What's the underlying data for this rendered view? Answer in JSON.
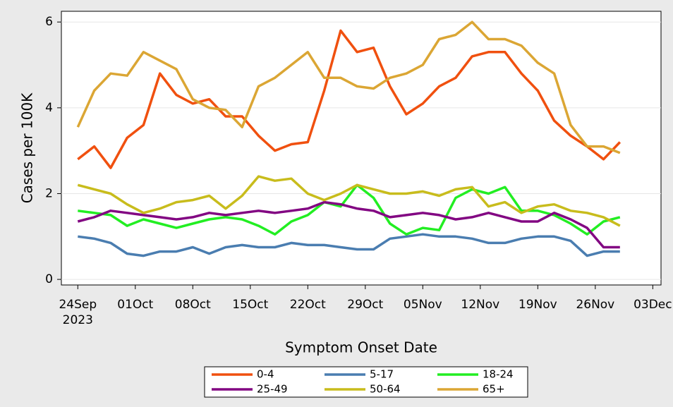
{
  "chart_data": {
    "type": "line",
    "x_label": "Symptom Onset Date",
    "y_label": "Cases per 100K",
    "x": [
      "2023-09-24",
      "2023-09-26",
      "2023-09-28",
      "2023-09-30",
      "2023-10-02",
      "2023-10-04",
      "2023-10-06",
      "2023-10-08",
      "2023-10-10",
      "2023-10-12",
      "2023-10-14",
      "2023-10-16",
      "2023-10-18",
      "2023-10-20",
      "2023-10-22",
      "2023-10-24",
      "2023-10-26",
      "2023-10-28",
      "2023-10-30",
      "2023-11-01",
      "2023-11-03",
      "2023-11-05",
      "2023-11-07",
      "2023-11-09",
      "2023-11-11",
      "2023-11-13",
      "2023-11-15",
      "2023-11-17",
      "2023-11-19",
      "2023-11-21",
      "2023-11-23",
      "2023-11-25",
      "2023-11-27",
      "2023-11-29"
    ],
    "series": [
      {
        "name": "0-4",
        "color": "#f0500f",
        "values": [
          2.8,
          3.1,
          2.6,
          3.3,
          3.6,
          4.8,
          4.3,
          4.1,
          4.2,
          3.8,
          3.8,
          3.35,
          3.0,
          3.15,
          3.2,
          4.4,
          5.8,
          5.3,
          5.4,
          4.5,
          3.85,
          4.1,
          4.5,
          4.7,
          5.2,
          5.3,
          5.3,
          4.8,
          4.4,
          3.7,
          3.35,
          3.1,
          2.8,
          3.2
        ]
      },
      {
        "name": "5-17",
        "color": "#4a7db0",
        "values": [
          1.0,
          0.95,
          0.85,
          0.6,
          0.55,
          0.65,
          0.65,
          0.75,
          0.6,
          0.75,
          0.8,
          0.75,
          0.75,
          0.85,
          0.8,
          0.8,
          0.75,
          0.7,
          0.7,
          0.95,
          1.0,
          1.05,
          1.0,
          1.0,
          0.95,
          0.85,
          0.85,
          0.95,
          1.0,
          1.0,
          0.9,
          0.55,
          0.65,
          0.65
        ]
      },
      {
        "name": "18-24",
        "color": "#22ee22",
        "values": [
          1.6,
          1.55,
          1.5,
          1.25,
          1.4,
          1.3,
          1.2,
          1.3,
          1.4,
          1.45,
          1.4,
          1.25,
          1.05,
          1.35,
          1.5,
          1.8,
          1.7,
          2.2,
          1.9,
          1.3,
          1.05,
          1.2,
          1.15,
          1.9,
          2.1,
          2.0,
          2.15,
          1.6,
          1.6,
          1.5,
          1.3,
          1.05,
          1.35,
          1.45
        ]
      },
      {
        "name": "25-49",
        "color": "#820682",
        "values": [
          1.35,
          1.45,
          1.6,
          1.55,
          1.5,
          1.45,
          1.4,
          1.45,
          1.55,
          1.5,
          1.55,
          1.6,
          1.55,
          1.6,
          1.65,
          1.8,
          1.75,
          1.65,
          1.6,
          1.45,
          1.5,
          1.55,
          1.5,
          1.4,
          1.45,
          1.55,
          1.45,
          1.35,
          1.35,
          1.55,
          1.4,
          1.2,
          0.75,
          0.75
        ]
      },
      {
        "name": "50-64",
        "color": "#c8bc1c",
        "values": [
          2.2,
          2.1,
          2.0,
          1.75,
          1.55,
          1.65,
          1.8,
          1.85,
          1.95,
          1.65,
          1.95,
          2.4,
          2.3,
          2.35,
          2.0,
          1.85,
          2.0,
          2.2,
          2.1,
          2.0,
          2.0,
          2.05,
          1.95,
          2.1,
          2.15,
          1.7,
          1.8,
          1.55,
          1.7,
          1.75,
          1.6,
          1.55,
          1.45,
          1.25
        ]
      },
      {
        "name": "65+",
        "color": "#dba634",
        "values": [
          3.55,
          4.4,
          4.8,
          4.75,
          5.3,
          5.1,
          4.9,
          4.2,
          4.0,
          3.95,
          3.55,
          4.5,
          4.7,
          5.0,
          5.3,
          4.7,
          4.7,
          4.5,
          4.45,
          4.7,
          4.8,
          5.0,
          5.6,
          5.7,
          6.0,
          5.6,
          5.6,
          5.45,
          5.05,
          4.8,
          3.6,
          3.1,
          3.1,
          2.95
        ]
      }
    ],
    "xlim": [
      "2023-09-22",
      "2023-12-04"
    ],
    "xticks": [
      {
        "value": "2023-09-24",
        "label": "24Sep\n2023"
      },
      {
        "value": "2023-10-01",
        "label": "01Oct"
      },
      {
        "value": "2023-10-08",
        "label": "08Oct"
      },
      {
        "value": "2023-10-15",
        "label": "15Oct"
      },
      {
        "value": "2023-10-22",
        "label": "22Oct"
      },
      {
        "value": "2023-10-29",
        "label": "29Oct"
      },
      {
        "value": "2023-11-05",
        "label": "05Nov"
      },
      {
        "value": "2023-11-12",
        "label": "12Nov"
      },
      {
        "value": "2023-11-19",
        "label": "19Nov"
      },
      {
        "value": "2023-11-26",
        "label": "26Nov"
      },
      {
        "value": "2023-12-03",
        "label": "03Dec"
      }
    ],
    "ylim": [
      -0.13,
      6.25
    ],
    "yticks": [
      0,
      2,
      4,
      6
    ],
    "grid": true
  }
}
